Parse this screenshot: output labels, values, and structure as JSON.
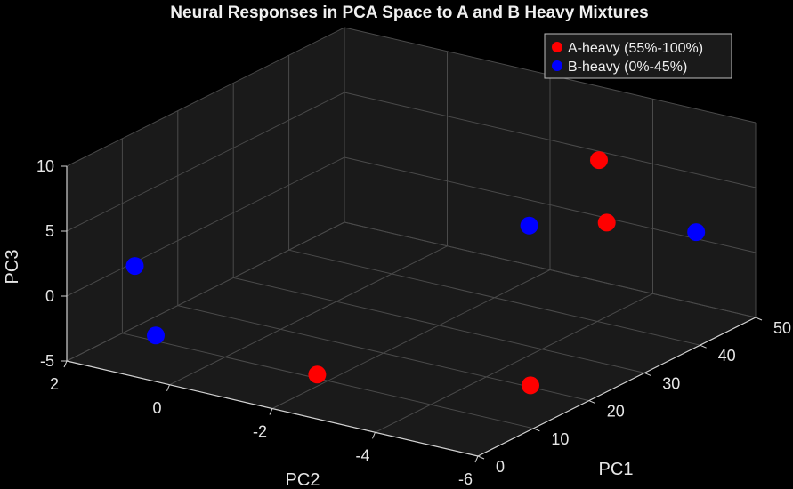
{
  "chart_data": {
    "type": "scatter3d",
    "title": "Neural Responses in PCA Space to A and B Heavy Mixtures",
    "xlabel": "PC1",
    "ylabel": "PC2",
    "zlabel": "PC3",
    "xlim": [
      0,
      50
    ],
    "ylim": [
      -6,
      2
    ],
    "zlim": [
      -5,
      10
    ],
    "xticks": [
      "0",
      "10",
      "20",
      "30",
      "40",
      "50"
    ],
    "yticks": [
      "-6",
      "-4",
      "-2",
      "0",
      "2"
    ],
    "zticks": [
      "-5",
      "0",
      "5",
      "10"
    ],
    "legend_position": "top-right",
    "grid": true,
    "background": "#1a1a1a",
    "series": [
      {
        "name": "A-heavy (55%-100%)",
        "color": "#ff0000",
        "points": [
          {
            "pc1": 44,
            "pc2": -3.6,
            "pc3": 6.2
          },
          {
            "pc1": 38,
            "pc2": -4.4,
            "pc3": 3.4
          },
          {
            "pc1": 15,
            "pc2": -5.4,
            "pc3": -3.3
          },
          {
            "pc1": 9,
            "pc2": -1.9,
            "pc3": -4.4
          }
        ]
      },
      {
        "name": "B-heavy (0%-45%)",
        "color": "#0000ff",
        "points": [
          {
            "pc1": 43,
            "pc2": -5.6,
            "pc3": 2.7
          },
          {
            "pc1": 37,
            "pc2": -3.0,
            "pc3": 2.1
          },
          {
            "pc1": 3,
            "pc2": 1.0,
            "pc3": 2.6
          },
          {
            "pc1": 4,
            "pc2": 0.7,
            "pc3": -2.7
          }
        ]
      }
    ]
  }
}
